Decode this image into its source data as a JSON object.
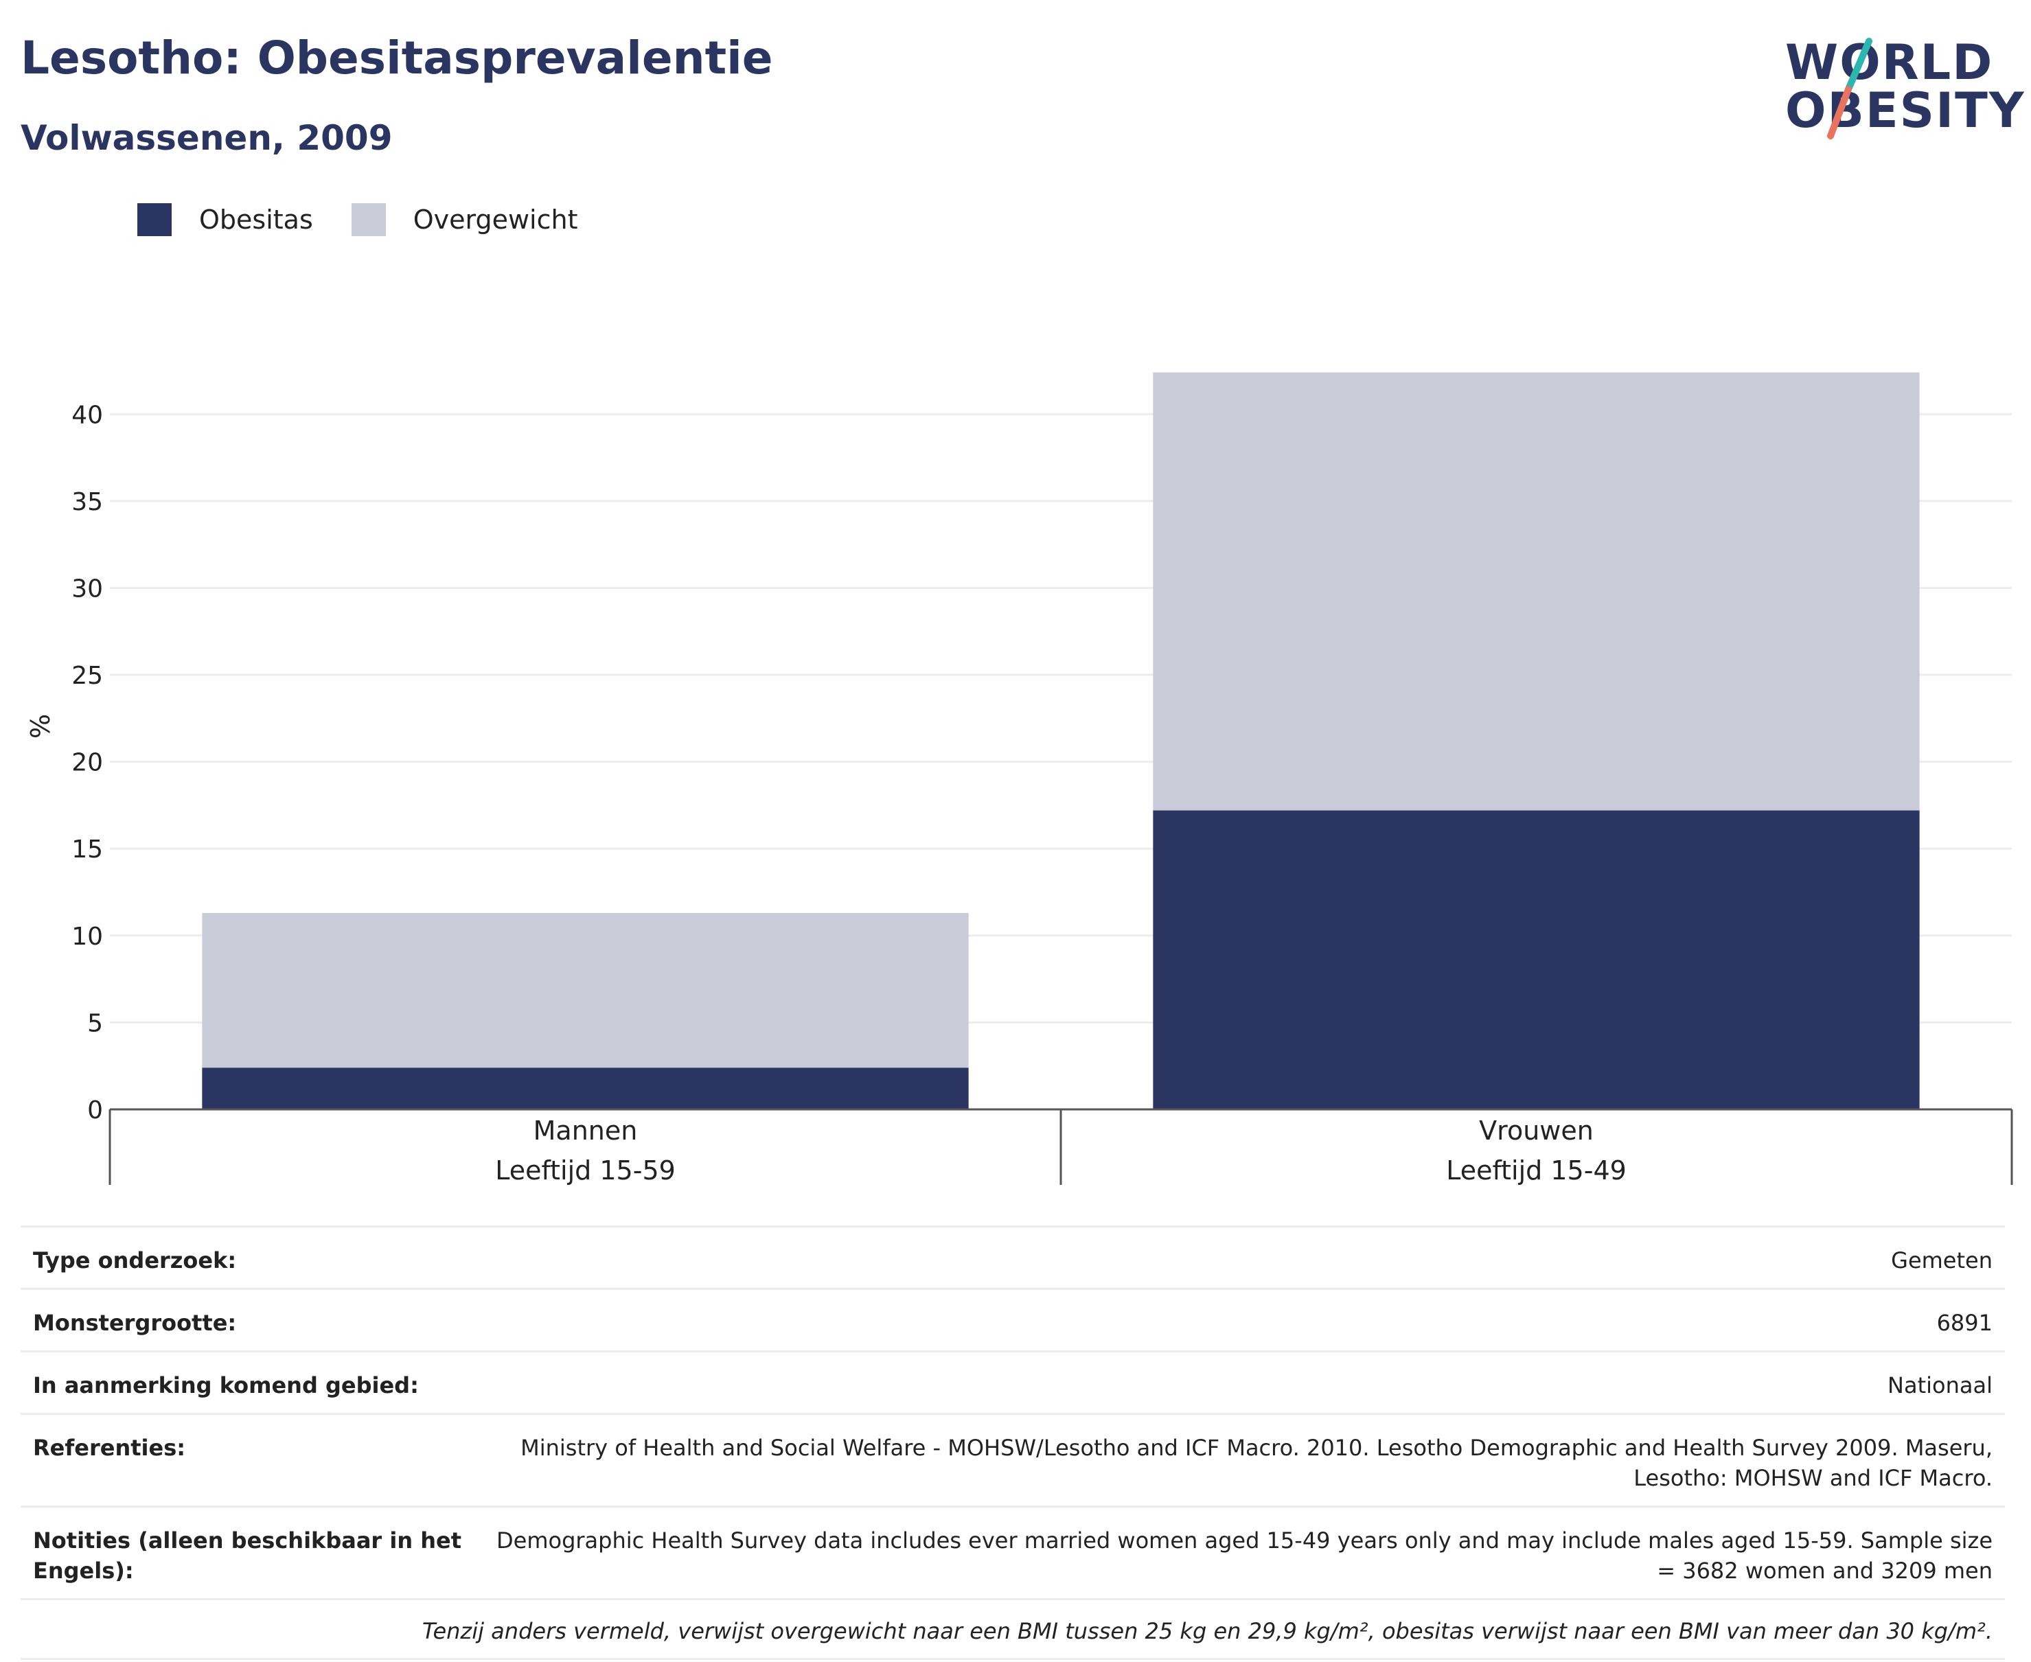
{
  "header": {
    "title": "Lesotho: Obesitasprevalentie",
    "subtitle": "Volwassenen, 2009"
  },
  "logo": {
    "line1": "WORLD",
    "line2": "OBESITY",
    "accent_teal": "#2bb6b0",
    "accent_coral": "#e8745f"
  },
  "legend": [
    {
      "label": "Obesitas",
      "color": "#2a3561"
    },
    {
      "label": "Overgewicht",
      "color": "#c9ccd8"
    }
  ],
  "chart_data": {
    "type": "bar",
    "stacked": true,
    "categories": [
      {
        "line1": "Mannen",
        "line2": "Leeftijd 15-59"
      },
      {
        "line1": "Vrouwen",
        "line2": "Leeftijd 15-49"
      }
    ],
    "series": [
      {
        "name": "Obesitas",
        "color": "#2a3561",
        "values": [
          2.4,
          17.2
        ]
      },
      {
        "name": "Overgewicht",
        "color": "#c9ccd8",
        "values": [
          8.9,
          25.2
        ]
      }
    ],
    "ylabel": "%",
    "ylim": [
      0,
      42.5
    ],
    "yticks": [
      0,
      5,
      10,
      15,
      20,
      25,
      30,
      35,
      40
    ],
    "grid": true,
    "legend_position": "top-left"
  },
  "info": [
    {
      "key": "Type onderzoek:",
      "value": "Gemeten"
    },
    {
      "key": "Monstergrootte:",
      "value": "6891"
    },
    {
      "key": "In aanmerking komend gebied:",
      "value": "Nationaal"
    },
    {
      "key": "Referenties:",
      "value": "Ministry of Health and Social Welfare - MOHSW/Lesotho and ICF Macro. 2010. Lesotho Demographic and Health Survey 2009. Maseru, Lesotho: MOHSW and ICF Macro."
    },
    {
      "key": "Notities (alleen beschikbaar in het Engels):",
      "value": "Demographic Health Survey data includes ever married women aged 15-49 years only and may include males aged 15-59. Sample size = 3682 women and 3209 men"
    }
  ],
  "footnote": "Tenzij anders vermeld, verwijst overgewicht naar een BMI tussen 25 kg en 29,9 kg/m², obesitas verwijst naar een BMI van meer dan 30 kg/m²."
}
